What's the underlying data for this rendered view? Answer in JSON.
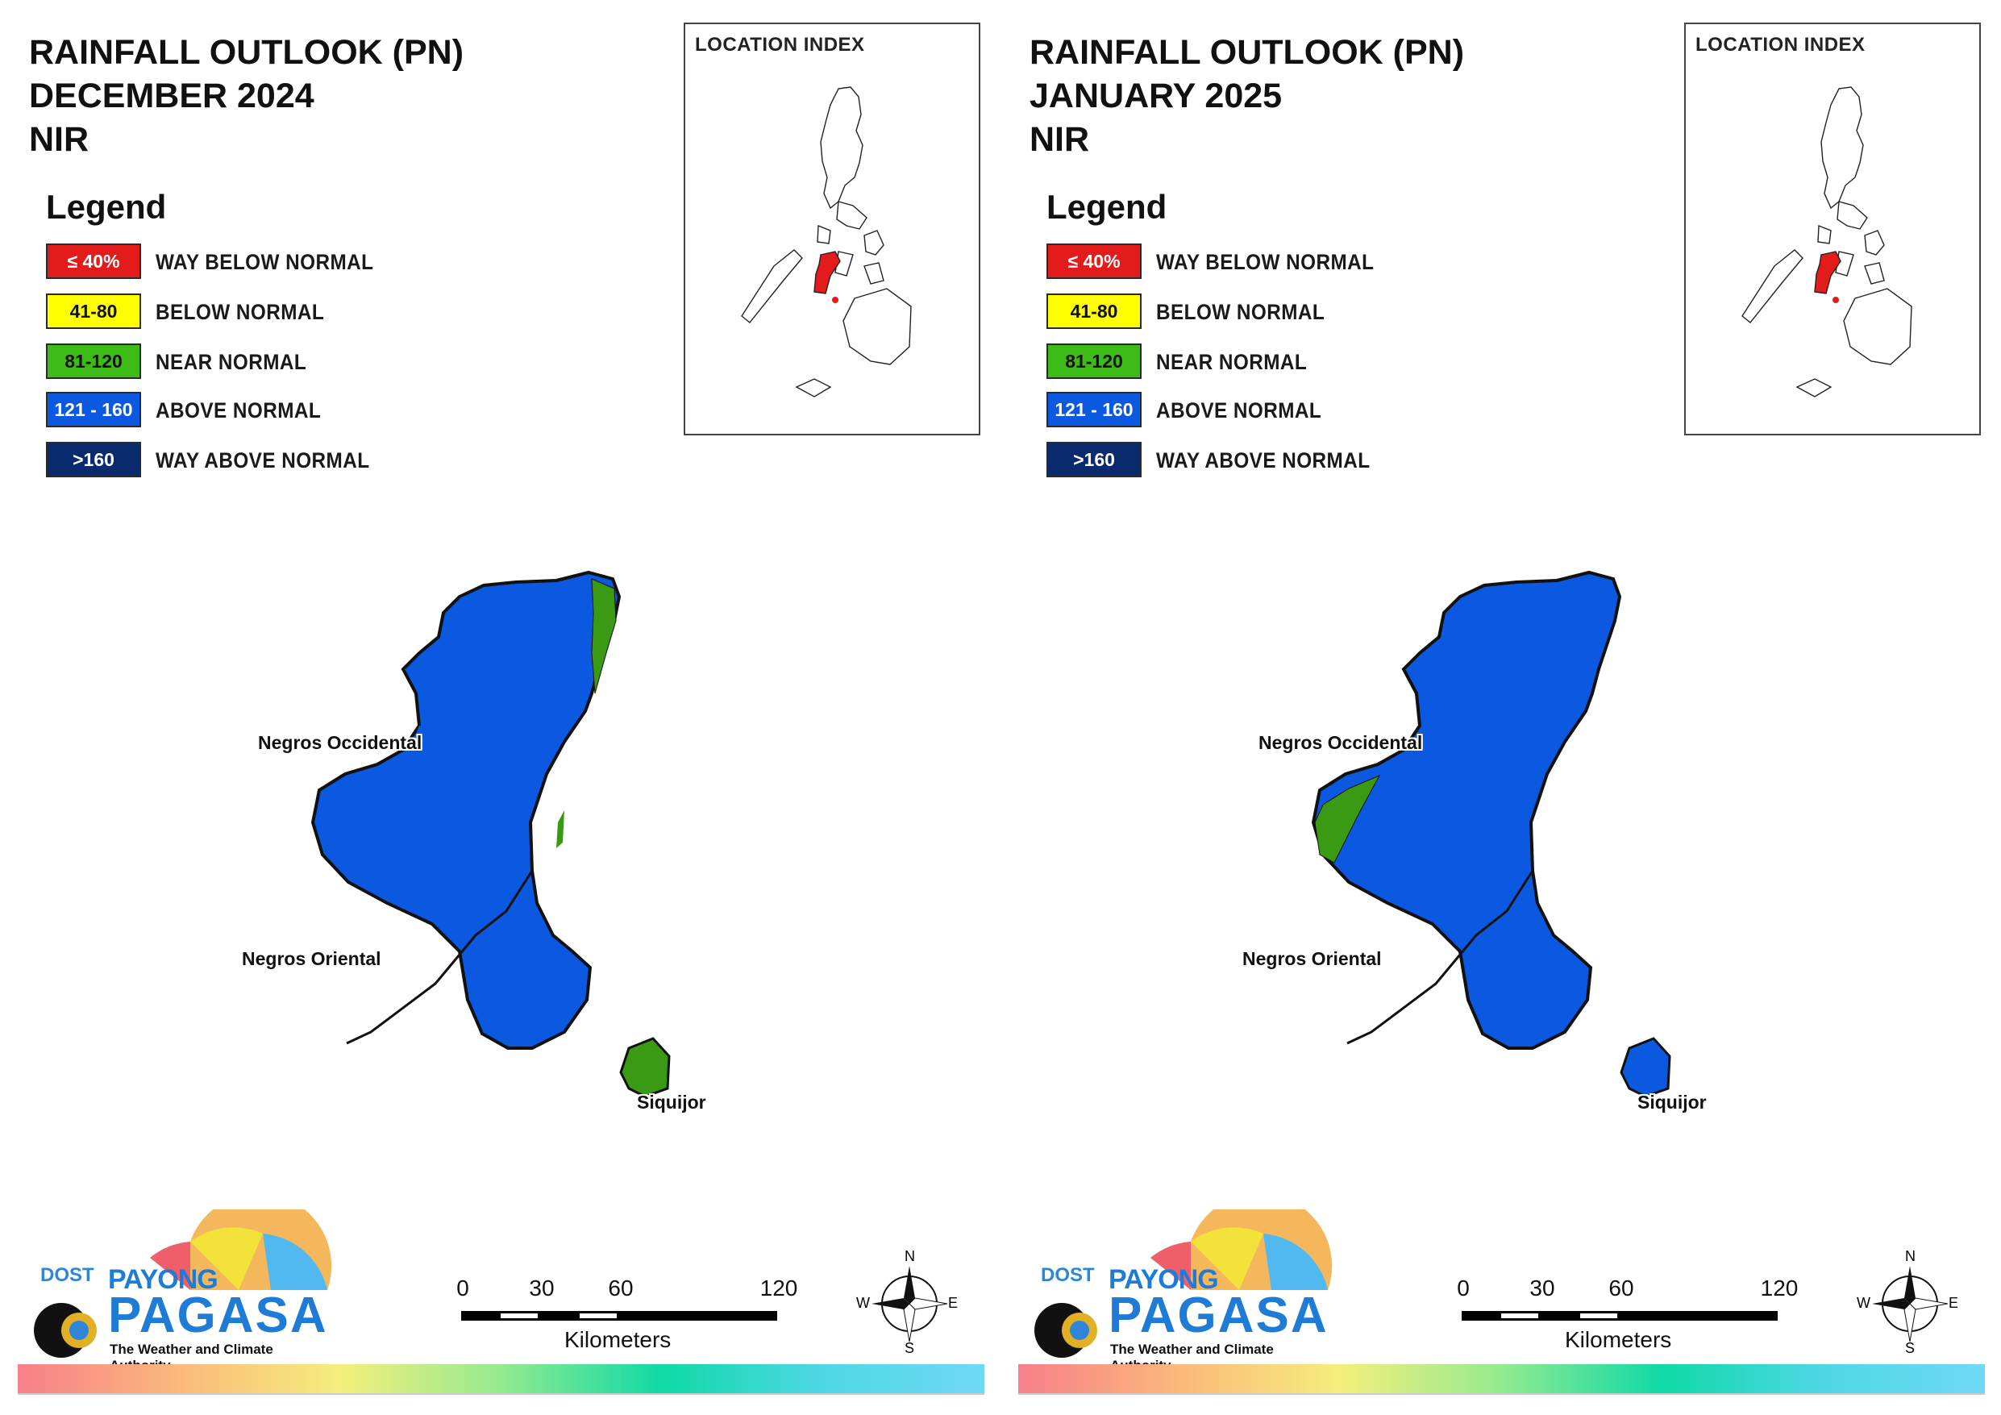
{
  "panels": [
    {
      "title": [
        "RAINFALL OUTLOOK (PN)",
        "DECEMBER 2024",
        "NIR"
      ],
      "siquijor_color": "#3a9a14",
      "nw_coast_green": false,
      "ne_coast_green": true
    },
    {
      "title": [
        "RAINFALL OUTLOOK (PN)",
        "JANUARY 2025",
        "NIR"
      ],
      "siquijor_color": "#0b59e0",
      "nw_coast_green": true,
      "ne_coast_green": false
    }
  ],
  "legend": {
    "title": "Legend",
    "items": [
      {
        "range": "≤ 40%",
        "label": "WAY BELOW NORMAL",
        "color": "#e41b1b",
        "text_color": "#ffffff"
      },
      {
        "range": "41-80",
        "label": "BELOW NORMAL",
        "color": "#ffff00",
        "text_color": "#111111"
      },
      {
        "range": "81-120",
        "label": "NEAR NORMAL",
        "color": "#3dbb16",
        "text_color": "#111111"
      },
      {
        "range": "121 - 160",
        "label": "ABOVE NORMAL",
        "color": "#0b59e0",
        "text_color": "#ffffff"
      },
      {
        "range": ">160",
        "label": "WAY ABOVE NORMAL",
        "color": "#0a2a6e",
        "text_color": "#ffffff"
      }
    ]
  },
  "location_index": {
    "title": "LOCATION INDEX",
    "highlight_color": "#e41b1b"
  },
  "map_labels": {
    "negros_occidental": "Negros Occidental",
    "negros_oriental": "Negros Oriental",
    "siquijor": "Siquijor"
  },
  "scale_bar": {
    "ticks": [
      "0",
      "30",
      "60",
      "120"
    ],
    "unit": "Kilometers"
  },
  "compass": {
    "n": "N",
    "s": "S",
    "e": "E",
    "w": "W"
  },
  "logo": {
    "dost": "DOST",
    "payong": "PAYONG",
    "pagasa": "PAGASA",
    "tagline": "The Weather and Climate Authority"
  },
  "colors": {
    "above_normal": "#0b59e0",
    "near_normal": "#3a9a14"
  }
}
